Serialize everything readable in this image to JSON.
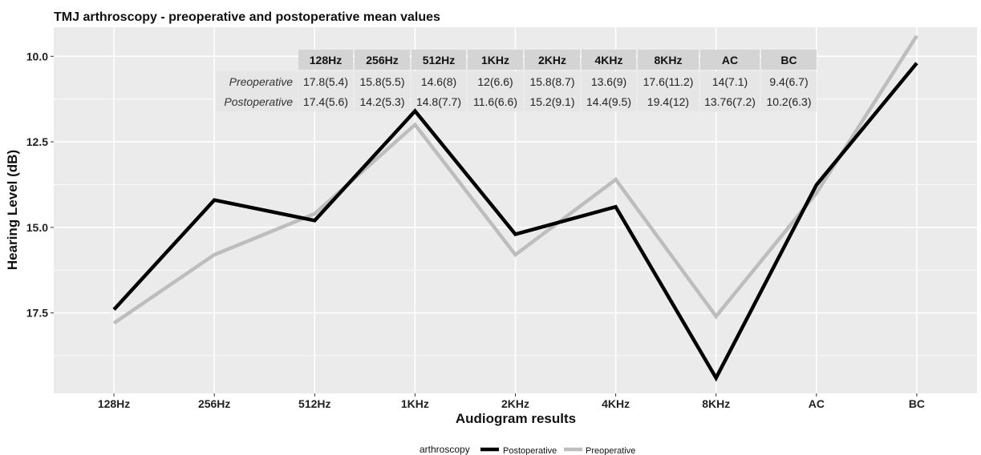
{
  "chart_data": {
    "type": "line",
    "title": "TMJ arthroscopy - preoperative and postoperative mean values",
    "xlabel": "Audiogram results",
    "ylabel": "Hearing Level (dB)",
    "categories": [
      "128Hz",
      "256Hz",
      "512Hz",
      "1KHz",
      "2KHz",
      "4KHz",
      "8KHz",
      "AC",
      "BC"
    ],
    "y_reversed": true,
    "ylim": [
      19.85,
      9.15
    ],
    "yticks": [
      10.0,
      12.5,
      15.0,
      17.5
    ],
    "ytick_labels": [
      "10.0",
      "12.5",
      "15.0",
      "17.5"
    ],
    "grid": true,
    "legend": {
      "title": "arthroscopy",
      "position": "bottom",
      "entries": [
        "Postoperative",
        "Preoperative"
      ]
    },
    "series": [
      {
        "name": "Postoperative",
        "color": "#000000",
        "values": [
          17.4,
          14.2,
          14.8,
          11.6,
          15.2,
          14.4,
          19.4,
          13.76,
          10.2
        ]
      },
      {
        "name": "Preoperative",
        "color": "#bdbdbd",
        "values": [
          17.8,
          15.8,
          14.6,
          12,
          15.8,
          13.6,
          17.6,
          14,
          9.4
        ]
      }
    ],
    "table": {
      "headers": [
        "128Hz",
        "256Hz",
        "512Hz",
        "1KHz",
        "2KHz",
        "4KHz",
        "8KHz",
        "AC",
        "BC"
      ],
      "rows": [
        {
          "label": "Preoperative",
          "cells": [
            "17.8(5.4)",
            "15.8(5.5)",
            "14.6(8)",
            "12(6.6)",
            "15.8(8.7)",
            "13.6(9)",
            "17.6(11.2)",
            "14(7.1)",
            "9.4(6.7)"
          ]
        },
        {
          "label": "Postoperative",
          "cells": [
            "17.4(5.6)",
            "14.2(5.3)",
            "14.8(7.7)",
            "11.6(6.6)",
            "15.2(9.1)",
            "14.4(9.5)",
            "19.4(12)",
            "13.76(7.2)",
            "10.2(6.3)"
          ]
        }
      ]
    },
    "colors": {
      "panel_background": "#ebebeb",
      "grid_line": "#ffffff",
      "table_header": "#d4d4d4",
      "table_row": "#e6e6e6"
    }
  }
}
